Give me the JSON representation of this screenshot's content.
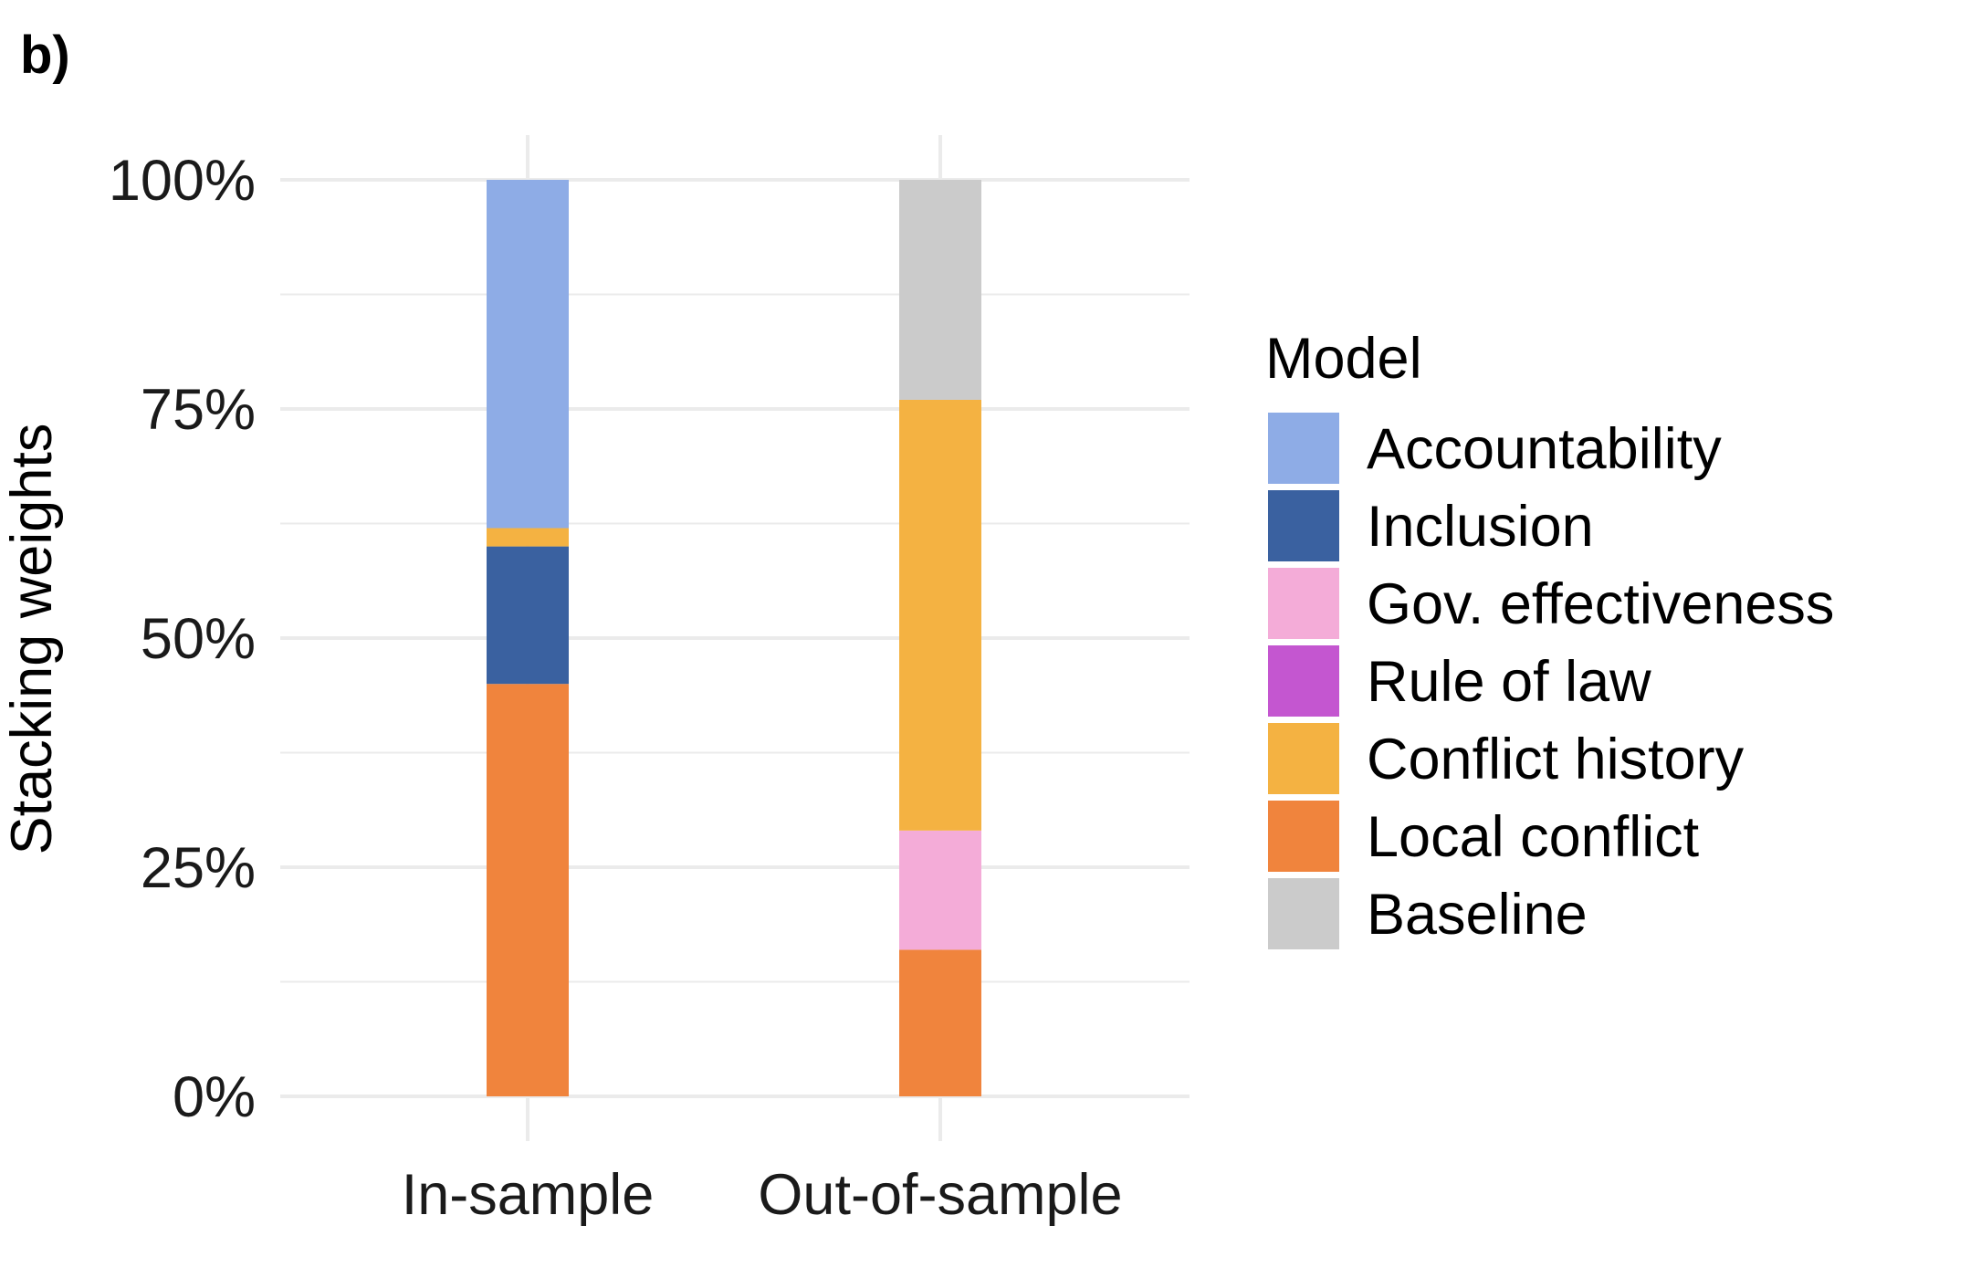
{
  "panel_label": "b)",
  "colors": {
    "Accountability": "#8EACE6",
    "Inclusion": "#3A61A0",
    "Gov. effectiveness": "#F4ACD8",
    "Rule of law": "#C456D0",
    "Conflict history": "#F4B242",
    "Local conflict": "#F0843D",
    "Baseline": "#CBCBCB",
    "grid": "#EBEBEB"
  },
  "chart_data": {
    "type": "bar",
    "stacked": true,
    "title": "",
    "xlabel": "",
    "ylabel": "Stacking weights",
    "ylim": [
      0,
      1
    ],
    "y_ticks": [
      0,
      0.25,
      0.5,
      0.75,
      1
    ],
    "y_tick_labels": [
      "0%",
      "25%",
      "50%",
      "75%",
      "100%"
    ],
    "categories": [
      "In-sample",
      "Out-of-sample"
    ],
    "grid": true,
    "legend_title": "Model",
    "legend_position": "right",
    "legend_order": [
      "Accountability",
      "Inclusion",
      "Gov. effectiveness",
      "Rule of law",
      "Conflict history",
      "Local conflict",
      "Baseline"
    ],
    "stack_order": [
      "Local conflict",
      "Gov. effectiveness",
      "Inclusion",
      "Conflict history",
      "Rule of law",
      "Baseline",
      "Accountability"
    ],
    "series": [
      {
        "name": "Accountability",
        "values": [
          0.38,
          0.0
        ]
      },
      {
        "name": "Inclusion",
        "values": [
          0.15,
          0.0
        ]
      },
      {
        "name": "Gov. effectiveness",
        "values": [
          0.0,
          0.13
        ]
      },
      {
        "name": "Rule of law",
        "values": [
          0.0,
          0.0
        ]
      },
      {
        "name": "Conflict history",
        "values": [
          0.02,
          0.47
        ]
      },
      {
        "name": "Local conflict",
        "values": [
          0.45,
          0.16
        ]
      },
      {
        "name": "Baseline",
        "values": [
          0.0,
          0.24
        ]
      }
    ]
  }
}
